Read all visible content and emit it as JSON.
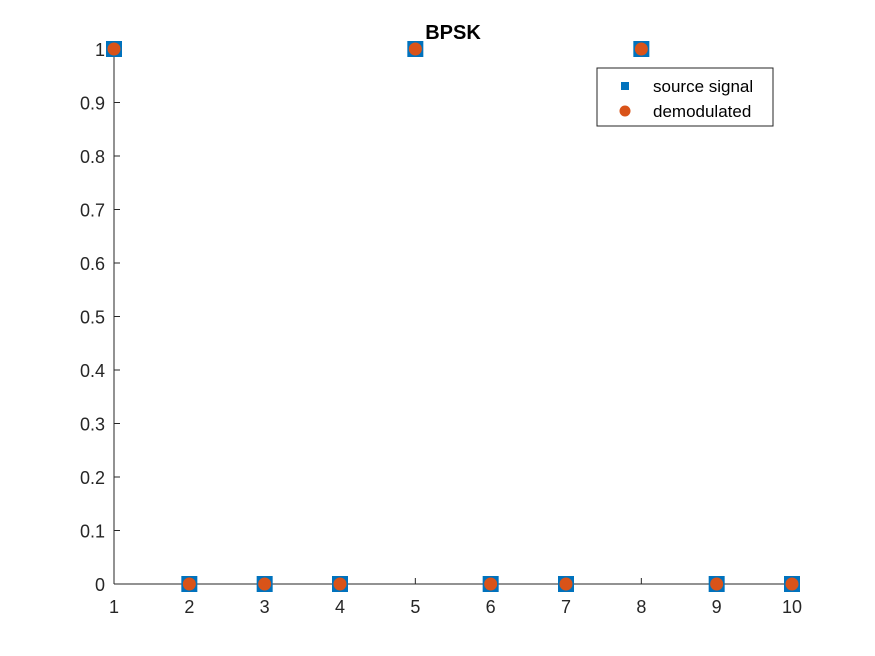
{
  "chart_data": {
    "type": "scatter",
    "title": "BPSK",
    "xlabel": "",
    "ylabel": "",
    "xlim": [
      1,
      10
    ],
    "ylim": [
      0,
      1
    ],
    "xticks": [
      "1",
      "2",
      "3",
      "4",
      "5",
      "6",
      "7",
      "8",
      "9",
      "10"
    ],
    "yticks": [
      "0",
      "0.1",
      "0.2",
      "0.3",
      "0.4",
      "0.5",
      "0.6",
      "0.7",
      "0.8",
      "0.9",
      "1"
    ],
    "grid": false,
    "legend_position": "top-right",
    "x": [
      1,
      2,
      3,
      4,
      5,
      6,
      7,
      8,
      9,
      10
    ],
    "series": [
      {
        "name": "source signal",
        "marker": "square",
        "color": "#0072BD",
        "values": [
          1,
          0,
          0,
          0,
          1,
          0,
          0,
          1,
          0,
          0
        ]
      },
      {
        "name": "demodulated",
        "marker": "circle",
        "color": "#D95319",
        "values": [
          1,
          0,
          0,
          0,
          1,
          0,
          0,
          1,
          0,
          0
        ]
      }
    ]
  }
}
